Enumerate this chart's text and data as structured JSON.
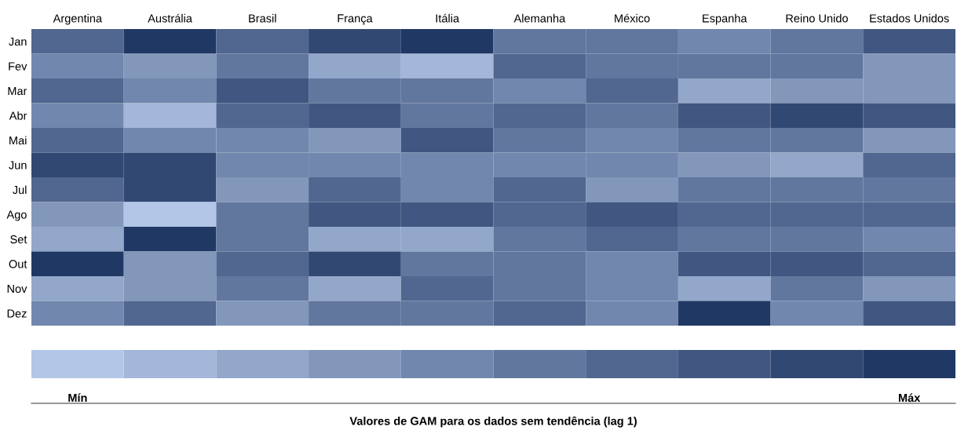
{
  "chart_data": {
    "type": "heatmap",
    "categories": [
      "Argentina",
      "Austrália",
      "Brasil",
      "França",
      "Itália",
      "Alemanha",
      "México",
      "Espanha",
      "Reino Unido",
      "Estados Unidos"
    ],
    "y_categories": [
      "Jan",
      "Fev",
      "Mar",
      "Abr",
      "Mai",
      "Jun",
      "Jul",
      "Ago",
      "Set",
      "Out",
      "Nov",
      "Dez"
    ],
    "cells": [
      [
        0.65,
        0.95,
        0.65,
        0.85,
        0.95,
        0.55,
        0.55,
        0.45,
        0.55,
        0.75
      ],
      [
        0.45,
        0.35,
        0.55,
        0.25,
        0.15,
        0.65,
        0.55,
        0.55,
        0.55,
        0.35
      ],
      [
        0.65,
        0.45,
        0.75,
        0.55,
        0.55,
        0.45,
        0.65,
        0.25,
        0.35,
        0.35
      ],
      [
        0.45,
        0.15,
        0.65,
        0.75,
        0.55,
        0.65,
        0.55,
        0.75,
        0.85,
        0.75
      ],
      [
        0.65,
        0.45,
        0.45,
        0.35,
        0.75,
        0.55,
        0.45,
        0.55,
        0.55,
        0.35
      ],
      [
        0.85,
        0.85,
        0.45,
        0.45,
        0.45,
        0.45,
        0.45,
        0.35,
        0.25,
        0.65
      ],
      [
        0.65,
        0.85,
        0.35,
        0.65,
        0.45,
        0.65,
        0.35,
        0.55,
        0.55,
        0.55
      ],
      [
        0.35,
        0.05,
        0.55,
        0.75,
        0.75,
        0.65,
        0.75,
        0.65,
        0.65,
        0.65
      ],
      [
        0.25,
        0.95,
        0.55,
        0.25,
        0.25,
        0.55,
        0.65,
        0.55,
        0.55,
        0.45
      ],
      [
        0.95,
        0.35,
        0.65,
        0.85,
        0.55,
        0.55,
        0.45,
        0.75,
        0.75,
        0.65
      ],
      [
        0.25,
        0.35,
        0.55,
        0.25,
        0.65,
        0.55,
        0.45,
        0.25,
        0.55,
        0.35
      ],
      [
        0.45,
        0.65,
        0.35,
        0.55,
        0.55,
        0.65,
        0.45,
        0.95,
        0.45,
        0.75
      ]
    ],
    "colors": [
      "#b4c6e7",
      "#203864"
    ],
    "clim": [
      0,
      1
    ],
    "cticks": [
      {
        "value": 0.05,
        "label": "Mín"
      },
      {
        "value": 0.95,
        "label": "Máx"
      }
    ],
    "clabel": "Valores de GAM para os dados sem tendência (lag 1)"
  }
}
